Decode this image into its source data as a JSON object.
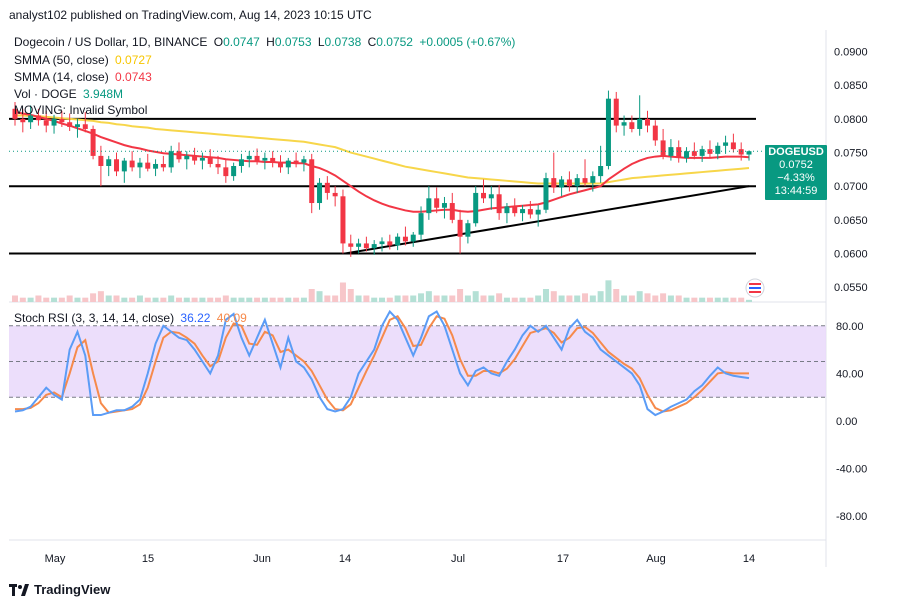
{
  "header": {
    "publisher": "analyst102 published on TradingView.com, Aug 14, 2023 10:15 UTC"
  },
  "legend": {
    "title": "Dogecoin / US Dollar, 1D, BINANCE",
    "open_label": "O",
    "open": "0.0747",
    "high_label": "H",
    "high": "0.0753",
    "low_label": "L",
    "low": "0.0738",
    "close_label": "C",
    "close": "0.0752",
    "change": "+0.0005 (+0.67%)",
    "sma50_label": "SMMA (50, close)",
    "sma50_value": "0.0727",
    "sma14_label": "SMMA (14, close)",
    "sma14_value": "0.0743",
    "vol_label": "Vol · DOGE",
    "vol_value": "3.948M",
    "moving_label": "MOVING: Invalid Symbol",
    "stoch_label": "Stoch RSI (3, 3, 14, 14, close)",
    "stoch_k": "36.22",
    "stoch_d": "40.09"
  },
  "price_tag": {
    "symbol": "DOGEUSD",
    "price": "0.0752",
    "change": "−4.33%",
    "countdown": "13:44:59"
  },
  "colors": {
    "up": "#089981",
    "down": "#f23645",
    "sma50": "#f7d64a",
    "sma14": "#f23645",
    "stoch_k": "#5b9cf6",
    "stoch_d": "#f68a4b",
    "stoch_band": "#e9d8fa"
  },
  "chart_data": [
    {
      "type": "candlestick",
      "title": "Dogecoin / US Dollar, 1D, BINANCE",
      "x_ticks": [
        "May",
        "15",
        "Jun",
        "14",
        "Jul",
        "17",
        "Aug",
        "14"
      ],
      "y_ticks": [
        "0.0900",
        "0.0850",
        "0.0800",
        "0.0750",
        "0.0700",
        "0.0650",
        "0.0600",
        "0.0550"
      ],
      "ylim": [
        0.0528,
        0.0932
      ],
      "horizontal_levels": [
        0.08,
        0.07,
        0.06
      ],
      "trendline": {
        "from": [
          "Jun 14",
          0.06
        ],
        "to": [
          "Aug 14",
          0.07
        ]
      },
      "candles": [
        [
          0.0815,
          0.0825,
          0.079,
          0.08
        ],
        [
          0.08,
          0.0815,
          0.078,
          0.0795
        ],
        [
          0.0795,
          0.082,
          0.0785,
          0.0805
        ],
        [
          0.0805,
          0.0815,
          0.079,
          0.0798
        ],
        [
          0.0798,
          0.0812,
          0.078,
          0.079
        ],
        [
          0.079,
          0.0806,
          0.0778,
          0.08
        ],
        [
          0.08,
          0.0812,
          0.0788,
          0.0795
        ],
        [
          0.0795,
          0.0808,
          0.0782,
          0.0788
        ],
        [
          0.0788,
          0.08,
          0.0772,
          0.0792
        ],
        [
          0.0792,
          0.081,
          0.078,
          0.0785
        ],
        [
          0.0785,
          0.079,
          0.074,
          0.0745
        ],
        [
          0.0745,
          0.076,
          0.07,
          0.073
        ],
        [
          0.073,
          0.0745,
          0.0715,
          0.074
        ],
        [
          0.074,
          0.075,
          0.0715,
          0.0722
        ],
        [
          0.0722,
          0.0742,
          0.0705,
          0.0738
        ],
        [
          0.0738,
          0.0752,
          0.0722,
          0.0728
        ],
        [
          0.0728,
          0.0742,
          0.0712,
          0.0735
        ],
        [
          0.0735,
          0.0748,
          0.0722,
          0.0726
        ],
        [
          0.0726,
          0.074,
          0.0715,
          0.0733
        ],
        [
          0.0733,
          0.0745,
          0.0722,
          0.0728
        ],
        [
          0.0728,
          0.076,
          0.072,
          0.0752
        ],
        [
          0.0752,
          0.0765,
          0.0735,
          0.074
        ],
        [
          0.074,
          0.0752,
          0.0725,
          0.0745
        ],
        [
          0.0745,
          0.0757,
          0.0732,
          0.0738
        ],
        [
          0.0738,
          0.075,
          0.0725,
          0.0742
        ],
        [
          0.0742,
          0.0755,
          0.0728,
          0.0733
        ],
        [
          0.0733,
          0.0745,
          0.0718,
          0.0728
        ],
        [
          0.0728,
          0.074,
          0.0705,
          0.0715
        ],
        [
          0.0715,
          0.0735,
          0.0708,
          0.073
        ],
        [
          0.073,
          0.0748,
          0.072,
          0.074
        ],
        [
          0.074,
          0.0752,
          0.0728,
          0.0745
        ],
        [
          0.0745,
          0.0756,
          0.0732,
          0.0738
        ],
        [
          0.0738,
          0.075,
          0.0725,
          0.0742
        ],
        [
          0.0742,
          0.0752,
          0.0728,
          0.0735
        ],
        [
          0.0735,
          0.0746,
          0.072,
          0.0728
        ],
        [
          0.0728,
          0.0742,
          0.0718,
          0.0738
        ],
        [
          0.0738,
          0.075,
          0.0728,
          0.0735
        ],
        [
          0.0735,
          0.0745,
          0.0722,
          0.074
        ],
        [
          0.074,
          0.0748,
          0.066,
          0.0675
        ],
        [
          0.0675,
          0.0712,
          0.0665,
          0.0705
        ],
        [
          0.0705,
          0.0715,
          0.068,
          0.069
        ],
        [
          0.069,
          0.07,
          0.067,
          0.0685
        ],
        [
          0.0685,
          0.0695,
          0.06,
          0.0615
        ],
        [
          0.0615,
          0.0628,
          0.0595,
          0.061
        ],
        [
          0.061,
          0.0622,
          0.06,
          0.0615
        ],
        [
          0.0615,
          0.0625,
          0.0603,
          0.0608
        ],
        [
          0.0608,
          0.062,
          0.0598,
          0.0614
        ],
        [
          0.0614,
          0.0624,
          0.0603,
          0.0618
        ],
        [
          0.0618,
          0.0628,
          0.0606,
          0.0612
        ],
        [
          0.0612,
          0.063,
          0.0605,
          0.0625
        ],
        [
          0.0625,
          0.064,
          0.0612,
          0.0618
        ],
        [
          0.0618,
          0.0632,
          0.061,
          0.0628
        ],
        [
          0.0628,
          0.067,
          0.062,
          0.066
        ],
        [
          0.066,
          0.07,
          0.065,
          0.0682
        ],
        [
          0.0682,
          0.0698,
          0.066,
          0.0668
        ],
        [
          0.0668,
          0.0684,
          0.0652,
          0.0675
        ],
        [
          0.0675,
          0.069,
          0.0645,
          0.065
        ],
        [
          0.065,
          0.0665,
          0.06,
          0.0625
        ],
        [
          0.0625,
          0.065,
          0.0615,
          0.0645
        ],
        [
          0.0645,
          0.07,
          0.064,
          0.069
        ],
        [
          0.069,
          0.071,
          0.0675,
          0.0682
        ],
        [
          0.0682,
          0.07,
          0.0665,
          0.0688
        ],
        [
          0.0688,
          0.0702,
          0.065,
          0.066
        ],
        [
          0.066,
          0.0675,
          0.0645,
          0.067
        ],
        [
          0.067,
          0.0682,
          0.0655,
          0.066
        ],
        [
          0.066,
          0.0672,
          0.0648,
          0.0666
        ],
        [
          0.0666,
          0.0678,
          0.0652,
          0.0658
        ],
        [
          0.0658,
          0.0672,
          0.064,
          0.0665
        ],
        [
          0.0665,
          0.072,
          0.066,
          0.0712
        ],
        [
          0.0712,
          0.075,
          0.069,
          0.0698
        ],
        [
          0.0698,
          0.0715,
          0.0685,
          0.071
        ],
        [
          0.071,
          0.0722,
          0.0692,
          0.07
        ],
        [
          0.07,
          0.0718,
          0.069,
          0.0712
        ],
        [
          0.0712,
          0.074,
          0.07,
          0.0705
        ],
        [
          0.0705,
          0.0722,
          0.0692,
          0.0715
        ],
        [
          0.0715,
          0.076,
          0.0705,
          0.073
        ],
        [
          0.073,
          0.0842,
          0.0725,
          0.083
        ],
        [
          0.083,
          0.084,
          0.078,
          0.079
        ],
        [
          0.079,
          0.0805,
          0.0775,
          0.0795
        ],
        [
          0.0795,
          0.0805,
          0.078,
          0.0785
        ],
        [
          0.0785,
          0.0835,
          0.0775,
          0.08
        ],
        [
          0.08,
          0.0812,
          0.078,
          0.079
        ],
        [
          0.079,
          0.0798,
          0.076,
          0.0768
        ],
        [
          0.0768,
          0.0785,
          0.074,
          0.0745
        ],
        [
          0.0745,
          0.077,
          0.0738,
          0.0758
        ],
        [
          0.0758,
          0.0768,
          0.0735,
          0.0742
        ],
        [
          0.0742,
          0.0758,
          0.0735,
          0.0752
        ],
        [
          0.0752,
          0.0765,
          0.074,
          0.0745
        ],
        [
          0.0745,
          0.076,
          0.0736,
          0.0755
        ],
        [
          0.0755,
          0.0768,
          0.0742,
          0.0748
        ],
        [
          0.0748,
          0.0765,
          0.074,
          0.076
        ],
        [
          0.076,
          0.0775,
          0.0748,
          0.0765
        ],
        [
          0.0765,
          0.0778,
          0.075,
          0.0755
        ],
        [
          0.0755,
          0.0765,
          0.0738,
          0.0747
        ],
        [
          0.0747,
          0.0753,
          0.0738,
          0.0752
        ]
      ],
      "smma14": [
        0.081,
        0.0808,
        0.0806,
        0.0803,
        0.08,
        0.0797,
        0.0793,
        0.079,
        0.0786,
        0.0782,
        0.0778,
        0.0773,
        0.0769,
        0.0765,
        0.0761,
        0.0758,
        0.0756,
        0.0753,
        0.0751,
        0.0749,
        0.0748,
        0.0747,
        0.0746,
        0.0745,
        0.0744,
        0.0743,
        0.0742,
        0.074,
        0.0739,
        0.0738,
        0.0737,
        0.0737,
        0.0736,
        0.0736,
        0.0735,
        0.0735,
        0.0734,
        0.0734,
        0.073,
        0.0727,
        0.0722,
        0.0716,
        0.0708,
        0.07,
        0.0692,
        0.0685,
        0.0679,
        0.0674,
        0.067,
        0.0667,
        0.0664,
        0.0662,
        0.0662,
        0.0663,
        0.0664,
        0.0665,
        0.0665,
        0.0663,
        0.0662,
        0.0663,
        0.0665,
        0.0667,
        0.0668,
        0.0669,
        0.067,
        0.0671,
        0.0672,
        0.0673,
        0.0676,
        0.068,
        0.0684,
        0.0688,
        0.0691,
        0.0694,
        0.0697,
        0.07,
        0.071,
        0.0718,
        0.0726,
        0.0733,
        0.0738,
        0.0742,
        0.0744,
        0.0745,
        0.0744,
        0.0743,
        0.0742,
        0.0742,
        0.0742,
        0.0742,
        0.0743,
        0.0744,
        0.0744,
        0.0744,
        0.0743
      ],
      "smma50": [
        0.0805,
        0.0805,
        0.0804,
        0.0804,
        0.0803,
        0.0802,
        0.0801,
        0.08,
        0.0799,
        0.0798,
        0.0797,
        0.0795,
        0.0794,
        0.0792,
        0.0791,
        0.0789,
        0.0788,
        0.0787,
        0.0785,
        0.0784,
        0.0783,
        0.0782,
        0.0781,
        0.078,
        0.0779,
        0.0778,
        0.0777,
        0.0776,
        0.0775,
        0.0774,
        0.0773,
        0.0772,
        0.0771,
        0.077,
        0.0769,
        0.0768,
        0.0767,
        0.0766,
        0.0764,
        0.0762,
        0.076,
        0.0758,
        0.0754,
        0.075,
        0.0747,
        0.0744,
        0.0741,
        0.0738,
        0.0735,
        0.0732,
        0.0729,
        0.0727,
        0.0725,
        0.0723,
        0.0721,
        0.0719,
        0.0717,
        0.0715,
        0.0713,
        0.0712,
        0.0711,
        0.071,
        0.0709,
        0.0708,
        0.0707,
        0.0706,
        0.0705,
        0.0704,
        0.0704,
        0.0704,
        0.0704,
        0.0704,
        0.0704,
        0.0704,
        0.0704,
        0.0704,
        0.0706,
        0.0708,
        0.071,
        0.0712,
        0.0713,
        0.0714,
        0.0715,
        0.0716,
        0.0717,
        0.0718,
        0.0719,
        0.072,
        0.0721,
        0.0722,
        0.0723,
        0.0724,
        0.0725,
        0.0726,
        0.0727
      ],
      "volume": [
        3,
        2,
        2,
        3,
        2,
        2,
        2,
        3,
        2,
        2,
        4,
        5,
        3,
        3,
        2,
        2,
        3,
        2,
        2,
        2,
        3,
        2,
        2,
        2,
        2,
        2,
        2,
        3,
        2,
        2,
        2,
        2,
        2,
        2,
        2,
        2,
        2,
        2,
        6,
        5,
        3,
        3,
        9,
        6,
        3,
        3,
        2,
        2,
        2,
        3,
        3,
        3,
        4,
        5,
        3,
        3,
        3,
        6,
        3,
        5,
        3,
        3,
        4,
        2,
        2,
        2,
        2,
        3,
        6,
        5,
        3,
        3,
        3,
        4,
        3,
        5,
        10,
        6,
        3,
        3,
        5,
        4,
        3,
        4,
        3,
        3,
        2,
        2,
        2,
        2,
        2,
        2,
        2,
        2,
        1
      ],
      "volume_unit": "relative"
    },
    {
      "type": "line",
      "title": "Stoch RSI (3, 3, 14, 14, close)",
      "y_ticks": [
        "80.00",
        "40.00",
        "0.00",
        "-40.00",
        "-80.00"
      ],
      "ylim": [
        -100,
        100
      ],
      "band": [
        20,
        80
      ],
      "midline": 50,
      "series": [
        {
          "name": "K",
          "values": [
            8,
            9,
            12,
            20,
            28,
            22,
            18,
            60,
            75,
            55,
            5,
            5,
            7,
            9,
            9,
            12,
            18,
            40,
            65,
            80,
            75,
            70,
            68,
            60,
            50,
            40,
            55,
            85,
            90,
            70,
            55,
            70,
            85,
            65,
            45,
            70,
            50,
            45,
            35,
            20,
            10,
            8,
            10,
            20,
            40,
            50,
            60,
            80,
            92,
            85,
            70,
            55,
            70,
            88,
            92,
            80,
            60,
            40,
            30,
            42,
            45,
            40,
            38,
            50,
            60,
            72,
            80,
            75,
            80,
            70,
            60,
            78,
            85,
            75,
            70,
            60,
            55,
            50,
            45,
            40,
            30,
            10,
            5,
            8,
            12,
            15,
            18,
            25,
            30,
            38,
            45,
            40,
            38,
            37,
            36
          ]
        },
        {
          "name": "D",
          "values": [
            10,
            10,
            11,
            15,
            22,
            24,
            20,
            40,
            62,
            68,
            40,
            15,
            7,
            8,
            9,
            10,
            14,
            28,
            50,
            70,
            75,
            74,
            70,
            65,
            55,
            46,
            50,
            70,
            82,
            80,
            65,
            64,
            75,
            72,
            58,
            60,
            55,
            50,
            42,
            30,
            18,
            10,
            9,
            14,
            28,
            42,
            55,
            70,
            85,
            88,
            78,
            63,
            64,
            78,
            88,
            86,
            72,
            52,
            38,
            38,
            42,
            42,
            40,
            44,
            52,
            63,
            74,
            76,
            78,
            74,
            66,
            70,
            78,
            79,
            74,
            66,
            58,
            53,
            48,
            44,
            36,
            22,
            11,
            8,
            9,
            12,
            15,
            20,
            26,
            33,
            40,
            41,
            40,
            40,
            40
          ]
        }
      ]
    }
  ]
}
